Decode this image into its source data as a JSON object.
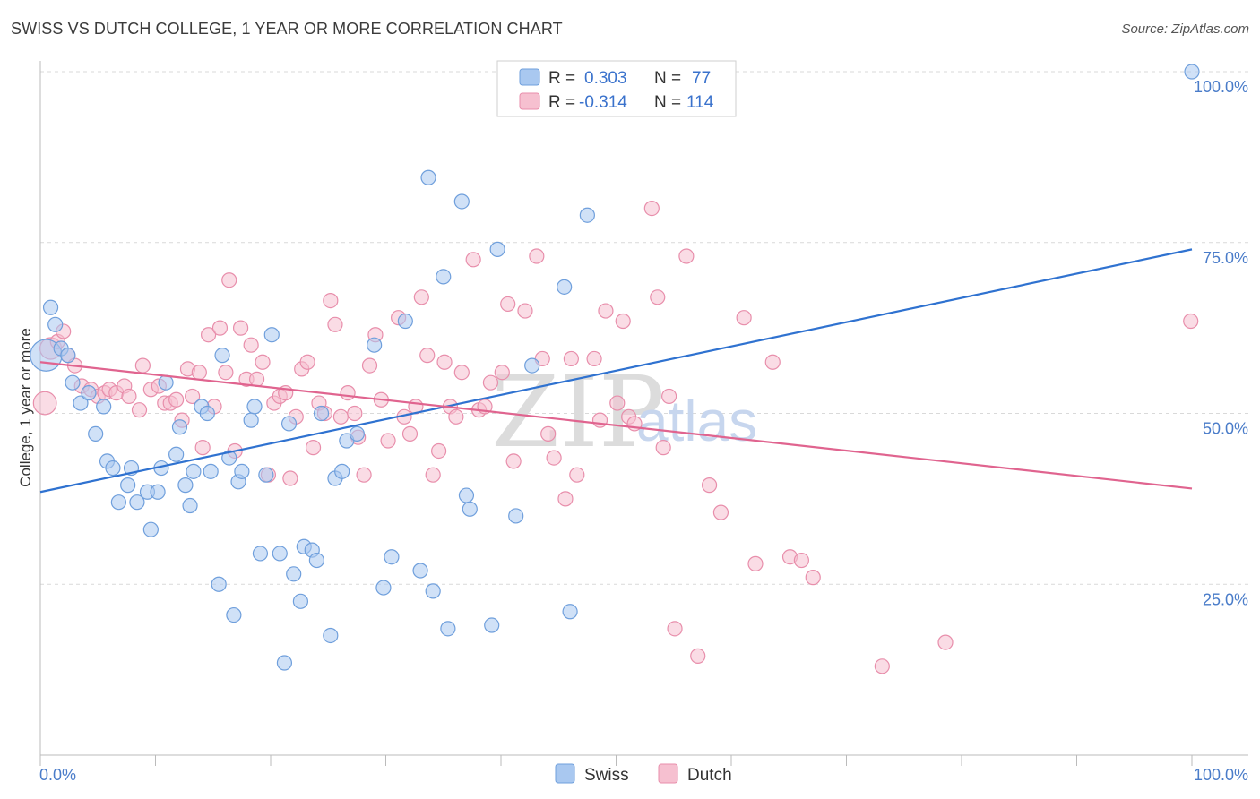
{
  "title": "SWISS VS DUTCH COLLEGE, 1 YEAR OR MORE CORRELATION CHART",
  "source": "Source: ZipAtlas.com",
  "watermark": {
    "zip": "ZIP",
    "atlas": "atlas"
  },
  "colors": {
    "swiss_fill": "#a9c8f0",
    "swiss_stroke": "#6f9fdc",
    "swiss_line": "#2f72d0",
    "dutch_fill": "#f6c0d0",
    "dutch_stroke": "#e88eab",
    "dutch_line": "#e0648f",
    "grid": "#d9d9d9",
    "axis_text": "#4a7cc9"
  },
  "legend": {
    "r_label": "R =",
    "n_label": "N =",
    "swiss": {
      "r": "0.303",
      "n": "77"
    },
    "dutch": {
      "r": "-0.314",
      "n": "114"
    }
  },
  "bottom_legend": {
    "swiss": "Swiss",
    "dutch": "Dutch"
  },
  "chart_data": {
    "type": "scatter",
    "xlabel": "",
    "ylabel": "College, 1 year or more",
    "xlim": [
      0,
      100
    ],
    "ylim": [
      0,
      100
    ],
    "x_tick_labels": {
      "left": "0.0%",
      "right": "100.0%"
    },
    "y_tick_labels": [
      {
        "value": 25,
        "label": "25.0%"
      },
      {
        "value": 50,
        "label": "50.0%"
      },
      {
        "value": 75,
        "label": "75.0%"
      },
      {
        "value": 100,
        "label": "100.0%"
      }
    ],
    "series": [
      {
        "name": "Swiss",
        "trend": {
          "x0": 0,
          "y0": 38.5,
          "x1": 100,
          "y1": 74.0
        },
        "points": [
          {
            "x": 0.5,
            "y": 58.5,
            "s": 2.2
          },
          {
            "x": 0.9,
            "y": 65.5
          },
          {
            "x": 1.3,
            "y": 63.0
          },
          {
            "x": 1.8,
            "y": 59.5
          },
          {
            "x": 2.4,
            "y": 58.5
          },
          {
            "x": 2.8,
            "y": 54.5
          },
          {
            "x": 3.5,
            "y": 51.5
          },
          {
            "x": 4.2,
            "y": 53.0
          },
          {
            "x": 4.8,
            "y": 47.0
          },
          {
            "x": 5.5,
            "y": 51.0
          },
          {
            "x": 5.8,
            "y": 43.0
          },
          {
            "x": 6.3,
            "y": 42.0
          },
          {
            "x": 6.8,
            "y": 37.0
          },
          {
            "x": 7.6,
            "y": 39.5
          },
          {
            "x": 7.9,
            "y": 42.0
          },
          {
            "x": 8.4,
            "y": 37.0
          },
          {
            "x": 9.3,
            "y": 38.5
          },
          {
            "x": 9.6,
            "y": 33.0
          },
          {
            "x": 10.2,
            "y": 38.5
          },
          {
            "x": 10.5,
            "y": 42.0
          },
          {
            "x": 10.9,
            "y": 54.5
          },
          {
            "x": 11.8,
            "y": 44.0
          },
          {
            "x": 12.1,
            "y": 48.0
          },
          {
            "x": 12.6,
            "y": 39.5
          },
          {
            "x": 13.0,
            "y": 36.5
          },
          {
            "x": 13.3,
            "y": 41.5
          },
          {
            "x": 14.0,
            "y": 51.0
          },
          {
            "x": 14.5,
            "y": 50.0
          },
          {
            "x": 14.8,
            "y": 41.5
          },
          {
            "x": 15.5,
            "y": 25.0
          },
          {
            "x": 15.8,
            "y": 58.5
          },
          {
            "x": 16.4,
            "y": 43.5
          },
          {
            "x": 16.8,
            "y": 20.5
          },
          {
            "x": 17.2,
            "y": 40.0
          },
          {
            "x": 17.5,
            "y": 41.5
          },
          {
            "x": 18.3,
            "y": 49.0
          },
          {
            "x": 18.6,
            "y": 51.0
          },
          {
            "x": 19.1,
            "y": 29.5
          },
          {
            "x": 19.6,
            "y": 41.0
          },
          {
            "x": 20.1,
            "y": 61.5
          },
          {
            "x": 20.8,
            "y": 29.5
          },
          {
            "x": 21.2,
            "y": 13.5
          },
          {
            "x": 21.6,
            "y": 48.5
          },
          {
            "x": 22.0,
            "y": 26.5
          },
          {
            "x": 22.6,
            "y": 22.5
          },
          {
            "x": 22.9,
            "y": 30.5
          },
          {
            "x": 23.6,
            "y": 30.0
          },
          {
            "x": 24.0,
            "y": 28.5
          },
          {
            "x": 24.4,
            "y": 50.0
          },
          {
            "x": 25.2,
            "y": 17.5
          },
          {
            "x": 25.6,
            "y": 40.5
          },
          {
            "x": 26.2,
            "y": 41.5
          },
          {
            "x": 26.6,
            "y": 46.0
          },
          {
            "x": 27.5,
            "y": 47.0
          },
          {
            "x": 29.0,
            "y": 60.0
          },
          {
            "x": 29.8,
            "y": 24.5
          },
          {
            "x": 30.5,
            "y": 29.0
          },
          {
            "x": 31.7,
            "y": 63.5
          },
          {
            "x": 33.0,
            "y": 27.0
          },
          {
            "x": 33.7,
            "y": 84.5
          },
          {
            "x": 34.1,
            "y": 24.0
          },
          {
            "x": 35.0,
            "y": 70.0
          },
          {
            "x": 35.4,
            "y": 18.5
          },
          {
            "x": 36.6,
            "y": 81.0
          },
          {
            "x": 37.0,
            "y": 38.0
          },
          {
            "x": 37.3,
            "y": 36.0
          },
          {
            "x": 39.2,
            "y": 19.0
          },
          {
            "x": 39.7,
            "y": 74.0
          },
          {
            "x": 41.3,
            "y": 35.0
          },
          {
            "x": 42.7,
            "y": 57.0
          },
          {
            "x": 45.5,
            "y": 68.5
          },
          {
            "x": 46.0,
            "y": 21.0
          },
          {
            "x": 47.5,
            "y": 79.0
          },
          {
            "x": 100.0,
            "y": 100.0
          }
        ]
      },
      {
        "name": "Dutch",
        "trend": {
          "x0": 0,
          "y0": 57.5,
          "x1": 100,
          "y1": 39.0
        },
        "points": [
          {
            "x": 0.4,
            "y": 51.5,
            "s": 1.6
          },
          {
            "x": 0.9,
            "y": 59.5,
            "s": 1.5
          },
          {
            "x": 1.5,
            "y": 60.5
          },
          {
            "x": 2.0,
            "y": 62.0
          },
          {
            "x": 2.4,
            "y": 58.5
          },
          {
            "x": 3.0,
            "y": 57.0
          },
          {
            "x": 3.6,
            "y": 54.0
          },
          {
            "x": 4.4,
            "y": 53.5
          },
          {
            "x": 5.0,
            "y": 52.5
          },
          {
            "x": 5.6,
            "y": 53.0
          },
          {
            "x": 6.0,
            "y": 53.5
          },
          {
            "x": 6.6,
            "y": 53.0
          },
          {
            "x": 7.3,
            "y": 54.0
          },
          {
            "x": 7.7,
            "y": 52.5
          },
          {
            "x": 8.6,
            "y": 50.5
          },
          {
            "x": 8.9,
            "y": 57.0
          },
          {
            "x": 9.6,
            "y": 53.5
          },
          {
            "x": 10.3,
            "y": 54.0
          },
          {
            "x": 10.8,
            "y": 51.5
          },
          {
            "x": 11.3,
            "y": 51.5
          },
          {
            "x": 11.8,
            "y": 52.0
          },
          {
            "x": 12.3,
            "y": 49.0
          },
          {
            "x": 12.8,
            "y": 56.5
          },
          {
            "x": 13.2,
            "y": 52.5
          },
          {
            "x": 13.8,
            "y": 56.0
          },
          {
            "x": 14.1,
            "y": 45.0
          },
          {
            "x": 14.6,
            "y": 61.5
          },
          {
            "x": 15.1,
            "y": 51.0
          },
          {
            "x": 15.6,
            "y": 62.5
          },
          {
            "x": 16.1,
            "y": 56.0
          },
          {
            "x": 16.4,
            "y": 69.5
          },
          {
            "x": 16.9,
            "y": 44.5
          },
          {
            "x": 17.4,
            "y": 62.5
          },
          {
            "x": 17.9,
            "y": 55.0
          },
          {
            "x": 18.3,
            "y": 60.0
          },
          {
            "x": 18.8,
            "y": 55.0
          },
          {
            "x": 19.3,
            "y": 57.5
          },
          {
            "x": 19.8,
            "y": 41.0
          },
          {
            "x": 20.3,
            "y": 51.5
          },
          {
            "x": 20.8,
            "y": 52.5
          },
          {
            "x": 21.3,
            "y": 53.0
          },
          {
            "x": 21.7,
            "y": 40.5
          },
          {
            "x": 22.2,
            "y": 49.5
          },
          {
            "x": 22.7,
            "y": 56.5
          },
          {
            "x": 23.2,
            "y": 57.5
          },
          {
            "x": 23.7,
            "y": 45.0
          },
          {
            "x": 24.2,
            "y": 51.5
          },
          {
            "x": 24.7,
            "y": 50.0
          },
          {
            "x": 25.2,
            "y": 66.5
          },
          {
            "x": 25.6,
            "y": 63.0
          },
          {
            "x": 26.1,
            "y": 49.5
          },
          {
            "x": 26.7,
            "y": 53.0
          },
          {
            "x": 27.3,
            "y": 50.0
          },
          {
            "x": 27.6,
            "y": 46.5
          },
          {
            "x": 28.1,
            "y": 41.0
          },
          {
            "x": 28.6,
            "y": 57.0
          },
          {
            "x": 29.1,
            "y": 61.5
          },
          {
            "x": 29.6,
            "y": 52.0
          },
          {
            "x": 30.2,
            "y": 46.0
          },
          {
            "x": 31.1,
            "y": 64.0
          },
          {
            "x": 31.6,
            "y": 49.5
          },
          {
            "x": 32.1,
            "y": 47.0
          },
          {
            "x": 32.6,
            "y": 51.0
          },
          {
            "x": 33.1,
            "y": 67.0
          },
          {
            "x": 33.6,
            "y": 58.5
          },
          {
            "x": 34.1,
            "y": 41.0
          },
          {
            "x": 34.6,
            "y": 44.5
          },
          {
            "x": 35.1,
            "y": 57.5
          },
          {
            "x": 35.6,
            "y": 51.0
          },
          {
            "x": 36.1,
            "y": 49.5
          },
          {
            "x": 36.6,
            "y": 56.0
          },
          {
            "x": 37.6,
            "y": 72.5
          },
          {
            "x": 38.1,
            "y": 50.5
          },
          {
            "x": 38.6,
            "y": 51.0
          },
          {
            "x": 39.1,
            "y": 54.5
          },
          {
            "x": 40.1,
            "y": 56.0
          },
          {
            "x": 40.6,
            "y": 66.0
          },
          {
            "x": 41.1,
            "y": 43.0
          },
          {
            "x": 42.1,
            "y": 65.0
          },
          {
            "x": 43.1,
            "y": 73.0
          },
          {
            "x": 43.6,
            "y": 58.0
          },
          {
            "x": 44.1,
            "y": 47.0
          },
          {
            "x": 44.6,
            "y": 43.5
          },
          {
            "x": 45.6,
            "y": 37.5
          },
          {
            "x": 46.1,
            "y": 58.0
          },
          {
            "x": 46.6,
            "y": 41.0
          },
          {
            "x": 48.1,
            "y": 58.0
          },
          {
            "x": 48.6,
            "y": 49.0
          },
          {
            "x": 49.1,
            "y": 65.0
          },
          {
            "x": 50.1,
            "y": 51.5
          },
          {
            "x": 50.6,
            "y": 63.5
          },
          {
            "x": 51.1,
            "y": 49.5
          },
          {
            "x": 51.6,
            "y": 48.5
          },
          {
            "x": 53.1,
            "y": 80.0
          },
          {
            "x": 53.6,
            "y": 67.0
          },
          {
            "x": 54.1,
            "y": 45.0
          },
          {
            "x": 54.6,
            "y": 52.5
          },
          {
            "x": 55.1,
            "y": 18.5
          },
          {
            "x": 56.1,
            "y": 73.0
          },
          {
            "x": 57.1,
            "y": 14.5
          },
          {
            "x": 58.1,
            "y": 39.5
          },
          {
            "x": 59.1,
            "y": 35.5
          },
          {
            "x": 61.1,
            "y": 64.0
          },
          {
            "x": 62.1,
            "y": 28.0
          },
          {
            "x": 63.6,
            "y": 57.5
          },
          {
            "x": 65.1,
            "y": 29.0
          },
          {
            "x": 66.1,
            "y": 28.5
          },
          {
            "x": 67.1,
            "y": 26.0
          },
          {
            "x": 73.1,
            "y": 13.0
          },
          {
            "x": 78.6,
            "y": 16.5
          },
          {
            "x": 99.9,
            "y": 63.5
          }
        ]
      }
    ]
  }
}
